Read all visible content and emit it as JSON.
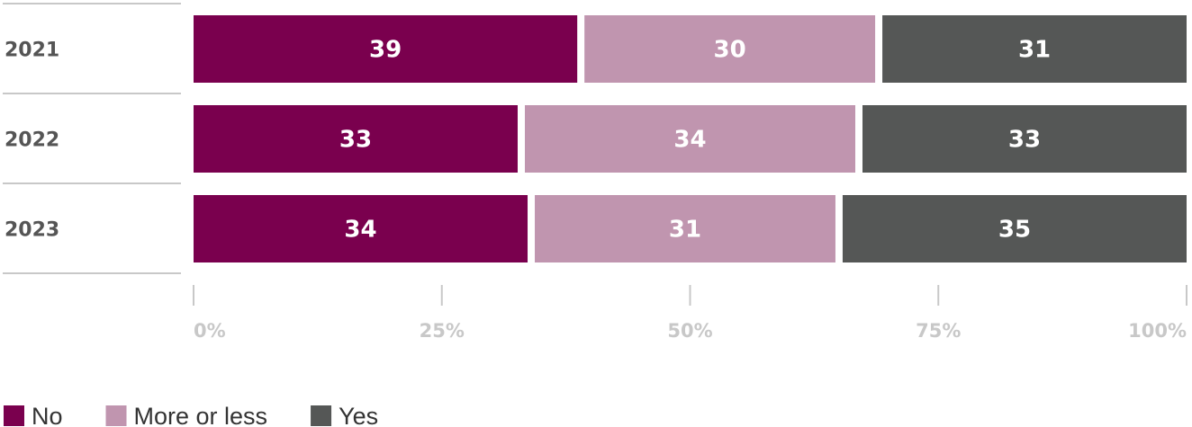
{
  "chart_data": {
    "type": "bar",
    "orientation": "horizontal",
    "stacked": true,
    "categories": [
      "2021",
      "2022",
      "2023"
    ],
    "series": [
      {
        "name": "No",
        "values": [
          39,
          33,
          34
        ],
        "color": "#7a004e"
      },
      {
        "name": "More or less",
        "values": [
          30,
          34,
          31
        ],
        "color": "#c095af"
      },
      {
        "name": "Yes",
        "values": [
          31,
          33,
          35
        ],
        "color": "#555756"
      }
    ],
    "x_ticks": [
      "0%",
      "25%",
      "50%",
      "75%",
      "100%"
    ],
    "xlim": [
      0,
      100
    ],
    "grid": false,
    "legend_position": "bottom-left"
  }
}
